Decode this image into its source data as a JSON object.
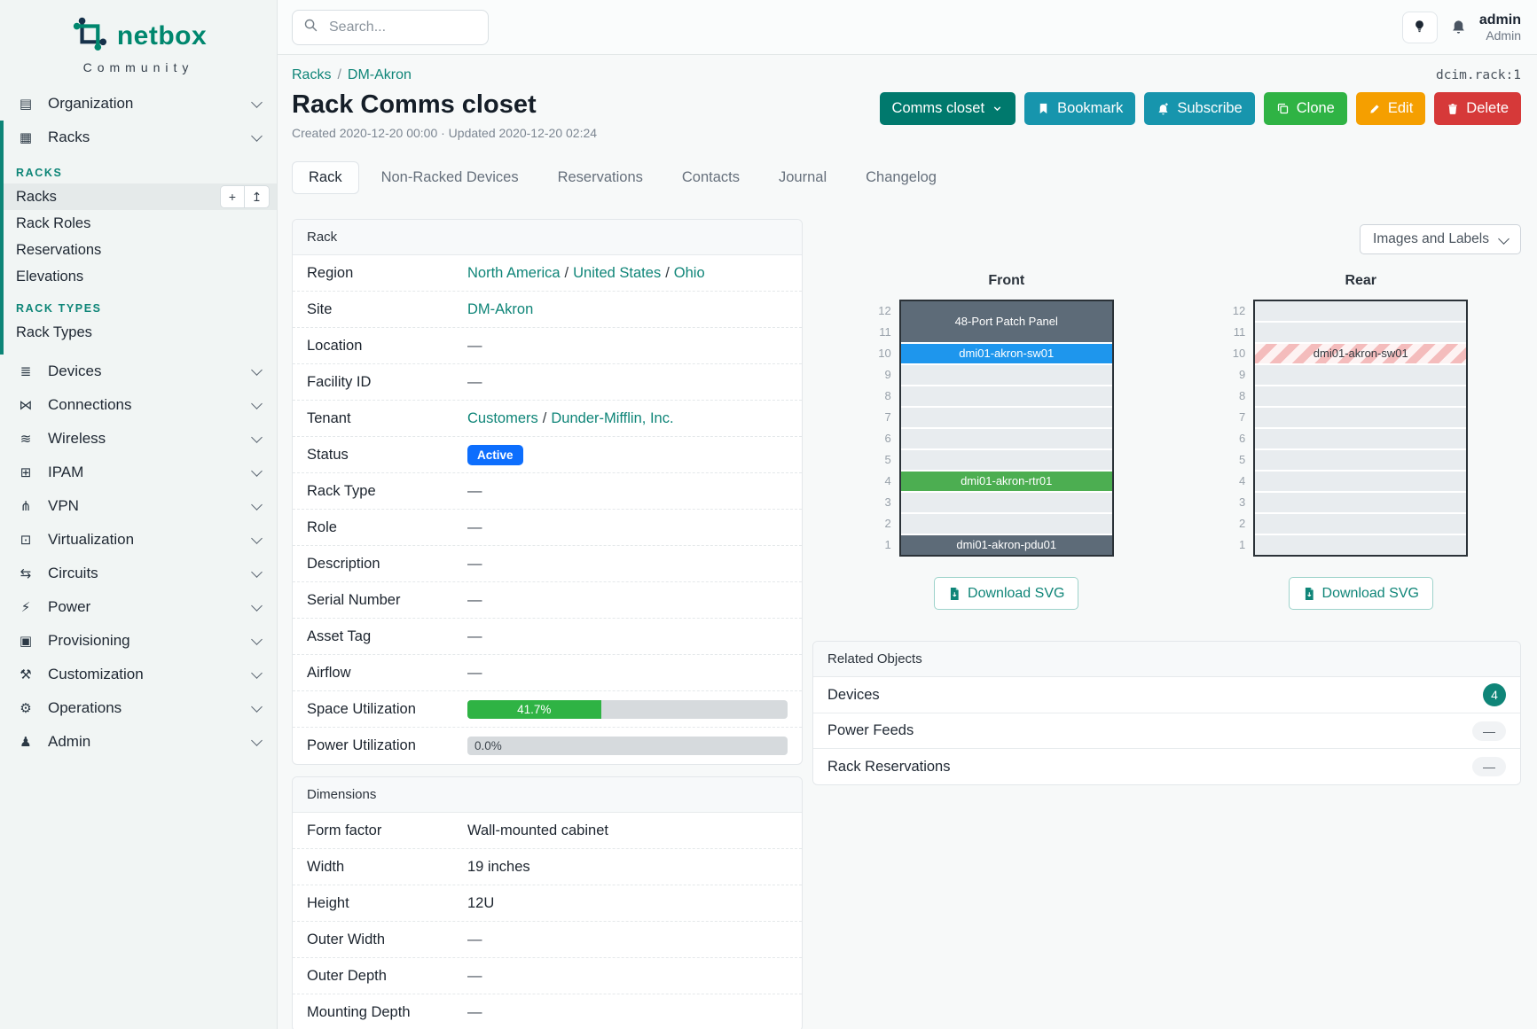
{
  "brand": {
    "name": "netbox",
    "tagline": "Community"
  },
  "topbar": {
    "search_placeholder": "Search...",
    "user_name": "admin",
    "user_role": "Admin"
  },
  "object_id": "dcim.rack:1",
  "breadcrumb": {
    "items": [
      "Racks",
      "DM-Akron"
    ]
  },
  "header": {
    "title": "Rack Comms closet",
    "meta": "Created 2020-12-20 00:00 · Updated 2020-12-20 02:24"
  },
  "actions": [
    {
      "label": "Comms closet",
      "icon": "chevron-down",
      "color": "#00796d",
      "name": "comms-closet-dropdown"
    },
    {
      "label": "Bookmark",
      "icon": "bookmark",
      "color": "#1795ad",
      "name": "bookmark-button"
    },
    {
      "label": "Subscribe",
      "icon": "bell-plus",
      "color": "#1795ad",
      "name": "subscribe-button"
    },
    {
      "label": "Clone",
      "icon": "copy",
      "color": "#2fb344",
      "name": "clone-button"
    },
    {
      "label": "Edit",
      "icon": "pencil",
      "color": "#f59f00",
      "name": "edit-button"
    },
    {
      "label": "Delete",
      "icon": "trash",
      "color": "#d63939",
      "name": "delete-button"
    }
  ],
  "tabs": [
    {
      "label": "Rack",
      "active": true
    },
    {
      "label": "Non-Racked Devices",
      "active": false
    },
    {
      "label": "Reservations",
      "active": false
    },
    {
      "label": "Contacts",
      "active": false
    },
    {
      "label": "Journal",
      "active": false
    },
    {
      "label": "Changelog",
      "active": false
    }
  ],
  "sidebar": {
    "add_glyph": "+",
    "import_glyph": "↥",
    "groups": [
      {
        "icon": "organization",
        "label": "Organization"
      },
      {
        "icon": "racks",
        "label": "Racks",
        "sections": [
          {
            "heading": "RACKS",
            "items": [
              {
                "label": "Racks",
                "active": true
              },
              {
                "label": "Rack Roles",
                "active": false
              },
              {
                "label": "Reservations",
                "active": false
              },
              {
                "label": "Elevations",
                "active": false
              }
            ]
          },
          {
            "heading": "RACK TYPES",
            "items": [
              {
                "label": "Rack Types",
                "active": false
              }
            ]
          }
        ]
      },
      {
        "icon": "devices",
        "label": "Devices"
      },
      {
        "icon": "connections",
        "label": "Connections"
      },
      {
        "icon": "wireless",
        "label": "Wireless"
      },
      {
        "icon": "ipam",
        "label": "IPAM"
      },
      {
        "icon": "vpn",
        "label": "VPN"
      },
      {
        "icon": "virtualization",
        "label": "Virtualization"
      },
      {
        "icon": "circuits",
        "label": "Circuits"
      },
      {
        "icon": "power",
        "label": "Power"
      },
      {
        "icon": "provisioning",
        "label": "Provisioning"
      },
      {
        "icon": "customization",
        "label": "Customization"
      },
      {
        "icon": "operations",
        "label": "Operations"
      },
      {
        "icon": "admin",
        "label": "Admin"
      }
    ]
  },
  "rack_panel": {
    "title": "Rack",
    "rows": [
      {
        "label": "Region",
        "type": "links",
        "links": [
          "North America",
          "United States",
          "Ohio"
        ]
      },
      {
        "label": "Site",
        "type": "links",
        "links": [
          "DM-Akron"
        ]
      },
      {
        "label": "Location",
        "type": "dash"
      },
      {
        "label": "Facility ID",
        "type": "dash"
      },
      {
        "label": "Tenant",
        "type": "links",
        "links": [
          "Customers",
          "Dunder-Mifflin, Inc."
        ]
      },
      {
        "label": "Status",
        "type": "badge",
        "text": "Active",
        "color": "#0d6efd"
      },
      {
        "label": "Rack Type",
        "type": "dash"
      },
      {
        "label": "Role",
        "type": "dash"
      },
      {
        "label": "Description",
        "type": "dash"
      },
      {
        "label": "Serial Number",
        "type": "dash"
      },
      {
        "label": "Asset Tag",
        "type": "dash"
      },
      {
        "label": "Airflow",
        "type": "dash"
      },
      {
        "label": "Space Utilization",
        "type": "progress",
        "percent": 41.7,
        "text": "41.7%",
        "color": "#2fb344"
      },
      {
        "label": "Power Utilization",
        "type": "progress",
        "percent": 0,
        "text": "0.0%",
        "color": "#2fb344"
      }
    ]
  },
  "dimensions_panel": {
    "title": "Dimensions",
    "rows": [
      {
        "label": "Form factor",
        "type": "text",
        "value": "Wall-mounted cabinet"
      },
      {
        "label": "Width",
        "type": "text",
        "value": "19 inches"
      },
      {
        "label": "Height",
        "type": "text",
        "value": "12U"
      },
      {
        "label": "Outer Width",
        "type": "dash"
      },
      {
        "label": "Outer Depth",
        "type": "dash"
      },
      {
        "label": "Mounting Depth",
        "type": "dash"
      }
    ]
  },
  "elevations": {
    "toolbar_label": "Images and Labels",
    "download_label": "Download SVG",
    "units": 12,
    "stripe_colors": [
      "#fdf3f3",
      "#f4bcbc"
    ],
    "front": {
      "title": "Front",
      "devices": [
        {
          "name": "48-Port Patch Panel",
          "top_unit": 12,
          "u_height": 2,
          "color": "#5d6b78",
          "text_color": "#ffffff"
        },
        {
          "name": "dmi01-akron-sw01",
          "top_unit": 10,
          "u_height": 1,
          "color": "#1e96ed",
          "text_color": "#ffffff"
        },
        {
          "name": "dmi01-akron-rtr01",
          "top_unit": 4,
          "u_height": 1,
          "color": "#4cae51",
          "text_color": "#ffffff"
        },
        {
          "name": "dmi01-akron-pdu01",
          "top_unit": 1,
          "u_height": 1,
          "color": "#5d6b78",
          "text_color": "#ffffff"
        }
      ]
    },
    "rear": {
      "title": "Rear",
      "devices": [
        {
          "name": "dmi01-akron-sw01",
          "top_unit": 10,
          "u_height": 1,
          "striped": true,
          "text_color": "#343a40"
        }
      ]
    }
  },
  "related": {
    "title": "Related Objects",
    "rows": [
      {
        "label": "Devices",
        "count": "4"
      },
      {
        "label": "Power Feeds",
        "count": null
      },
      {
        "label": "Rack Reservations",
        "count": null
      }
    ]
  },
  "colors": {
    "brand_teal": "#00876e",
    "link_teal": "#0f8578",
    "active_badge_blue": "#0d6efd",
    "utilization_green": "#2fb344"
  }
}
